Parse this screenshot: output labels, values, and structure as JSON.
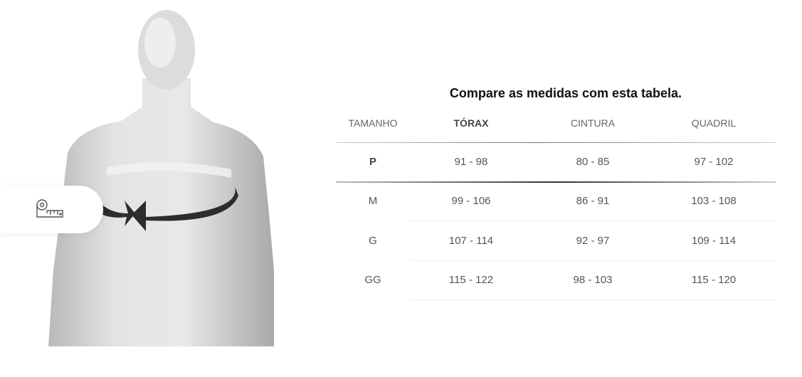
{
  "title": "Compare as medidas com esta tabela.",
  "icon": "measuring-tape-icon",
  "table": {
    "headers": [
      "TAMANHO",
      "TÓRAX",
      "CINTURA",
      "QUADRIL"
    ],
    "highlighted_column": "TÓRAX",
    "rows": [
      [
        "P",
        "91 - 98",
        "80 - 85",
        "97 - 102"
      ],
      [
        "M",
        "99 - 106",
        "86 - 91",
        "103 - 108"
      ],
      [
        "G",
        "107 - 114",
        "92 - 97",
        "109 - 114"
      ],
      [
        "GG",
        "115 - 122",
        "98 - 103",
        "115 - 120"
      ]
    ],
    "highlighted_row": "P"
  }
}
